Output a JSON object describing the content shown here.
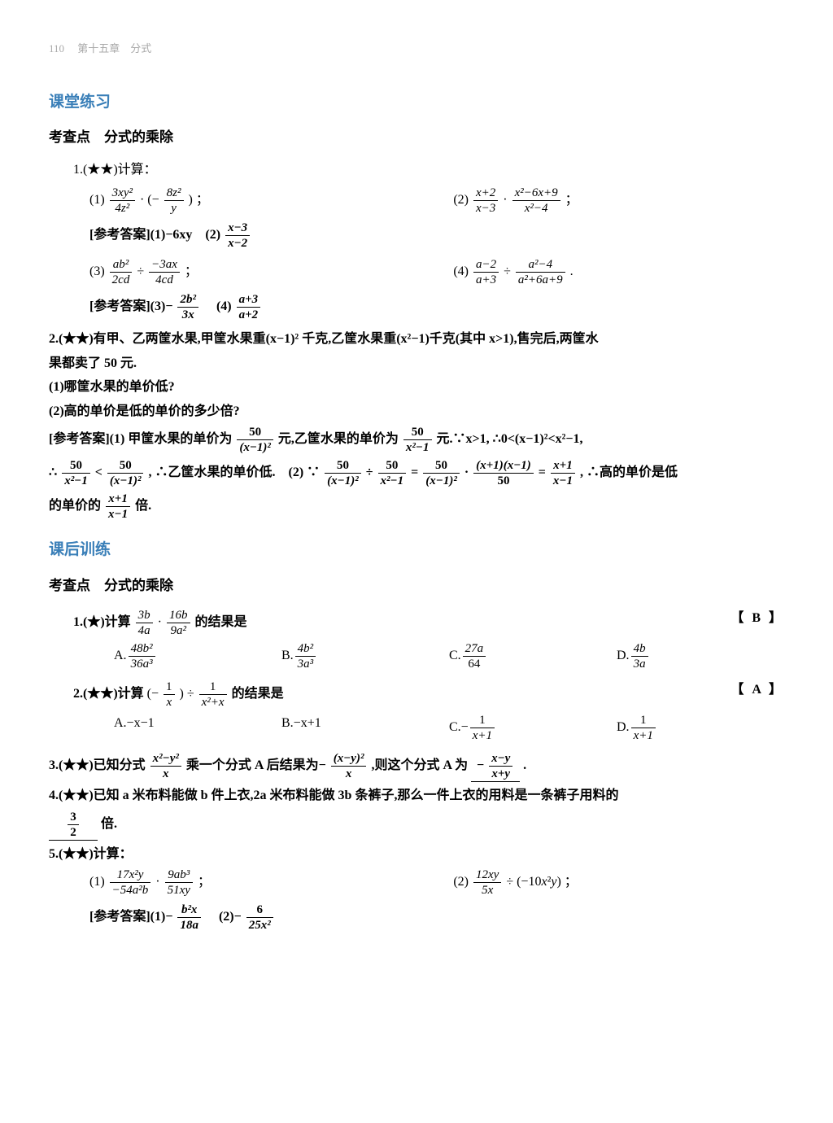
{
  "header": {
    "pageNum": "110",
    "chapter": "第十五章　分式"
  },
  "sections": {
    "s1": {
      "title": "课堂练习",
      "topic": "考查点　分式的乘除"
    },
    "s2": {
      "title": "课后训练",
      "topic": "考查点　分式的乘除"
    }
  },
  "p1": {
    "stem": "1.(★★)计算：",
    "a1label": "(1)",
    "a2label": "(2)",
    "a3label": "(3)",
    "a4label": "(4)",
    "ans1label": "[参考答案](1)−6xy　(2)",
    "ans2label": "[参考答案](3)−",
    "ans2_4": "　(4)"
  },
  "p2": {
    "stem_a": "2.(★★)有甲、乙两筐水果,甲筐水果重(x−1)² 千克,乙筐水果重(x²−1)千克(其中 x>1),售完后,两筐水",
    "stem_b": "果都卖了 50 元.",
    "q1": "(1)哪筐水果的单价低?",
    "q2": "(2)高的单价是低的单价的多少倍?",
    "ans_a": "[参考答案](1) 甲筐水果的单价为",
    "ans_b": "元,乙筐水果的单价为",
    "ans_c": "元.∵x>1, ∴0<(x−1)²<x²−1,",
    "ans_d": "∴",
    "ans_e": ", ∴乙筐水果的单价低.　(2) ∵",
    "ans_f": ", ∴高的单价是低",
    "ans_g": "的单价的",
    "ans_h": "倍."
  },
  "mc1": {
    "stem_a": "1.(★)计算",
    "stem_b": "的结果是",
    "ans": "【 B 】",
    "A": "A.",
    "B": "B.",
    "C": "C.",
    "D": "D."
  },
  "mc2": {
    "stem_a": "2.(★★)计算",
    "stem_b": "的结果是",
    "ans": "【 A 】",
    "A": "A.−x−1",
    "B": "B.−x+1",
    "C": "C.−",
    "D": "D."
  },
  "fb3": {
    "a": "3.(★★)已知分式",
    "b": "乘一个分式 A 后结果为−",
    "c": ",则这个分式 A 为",
    "d": "."
  },
  "fb4": {
    "a": "4.(★★)已知 a 米布料能做 b 件上衣,2a 米布料能做 3b 条裤子,那么一件上衣的用料是一条裤子用料的",
    "b": "倍."
  },
  "p5": {
    "stem": "5.(★★)计算：",
    "l1": "(1)",
    "l2": "(2)",
    "anslabel": "[参考答案](1)−",
    "ans2": "　(2)−"
  },
  "frac": {
    "f1n": "3xy²",
    "f1d": "4z²",
    "f2n": "8z²",
    "f2d": "y",
    "f3n": "x+2",
    "f3d": "x−3",
    "f4n": "x²−6x+9",
    "f4d": "x²−4",
    "f5n": "x−3",
    "f5d": "x−2",
    "f6n": "ab²",
    "f6d": "2cd",
    "f7n": "−3ax",
    "f7d": "4cd",
    "f8n": "a−2",
    "f8d": "a+3",
    "f9n": "a²−4",
    "f9d": "a²+6a+9",
    "f10n": "2b²",
    "f10d": "3x",
    "f11n": "a+3",
    "f11d": "a+2",
    "f12n": "50",
    "f12d": "(x−1)²",
    "f13n": "50",
    "f13d": "x²−1",
    "f14n": "50",
    "f14d": "x²−1",
    "f15n": "50",
    "f15d": "(x−1)²",
    "f16n": "50",
    "f16d": "(x−1)²",
    "f17n": "50",
    "f17d": "x²−1",
    "f18n": "50",
    "f18d": "(x−1)²",
    "f19n": "(x+1)(x−1)",
    "f19d": "50",
    "f20n": "x+1",
    "f20d": "x−1",
    "f21n": "x+1",
    "f21d": "x−1",
    "f22n": "3b",
    "f22d": "4a",
    "f23n": "16b",
    "f23d": "9a²",
    "f24n": "48b²",
    "f24d": "36a³",
    "f25n": "4b²",
    "f25d": "3a³",
    "f26n": "27a",
    "f26d": "64",
    "f27n": "4b",
    "f27d": "3a",
    "f28n": "1",
    "f28d": "x",
    "f29n": "1",
    "f29d": "x²+x",
    "f30n": "1",
    "f30d": "x+1",
    "f31n": "1",
    "f31d": "x+1",
    "f32n": "x²−y²",
    "f32d": "x",
    "f33n": "(x−y)²",
    "f33d": "x",
    "f34n": "x−y",
    "f34d": "x+y",
    "f35n": "3",
    "f35d": "2",
    "f36n": "17x²y",
    "f36d": "−54a²b",
    "f37n": "9ab³",
    "f37d": "51xy",
    "f38n": "12xy",
    "f38d": "5x",
    "f39n": "b²x",
    "f39d": "18a",
    "f40n": "6",
    "f40d": "25x²"
  },
  "syms": {
    "dot": " · ",
    "div": " ÷ ",
    "eq": " = ",
    "lt": " < ",
    "neg": "−",
    "lparen": "(−",
    "rparen": ")",
    "semi": " ；",
    "period": "."
  }
}
